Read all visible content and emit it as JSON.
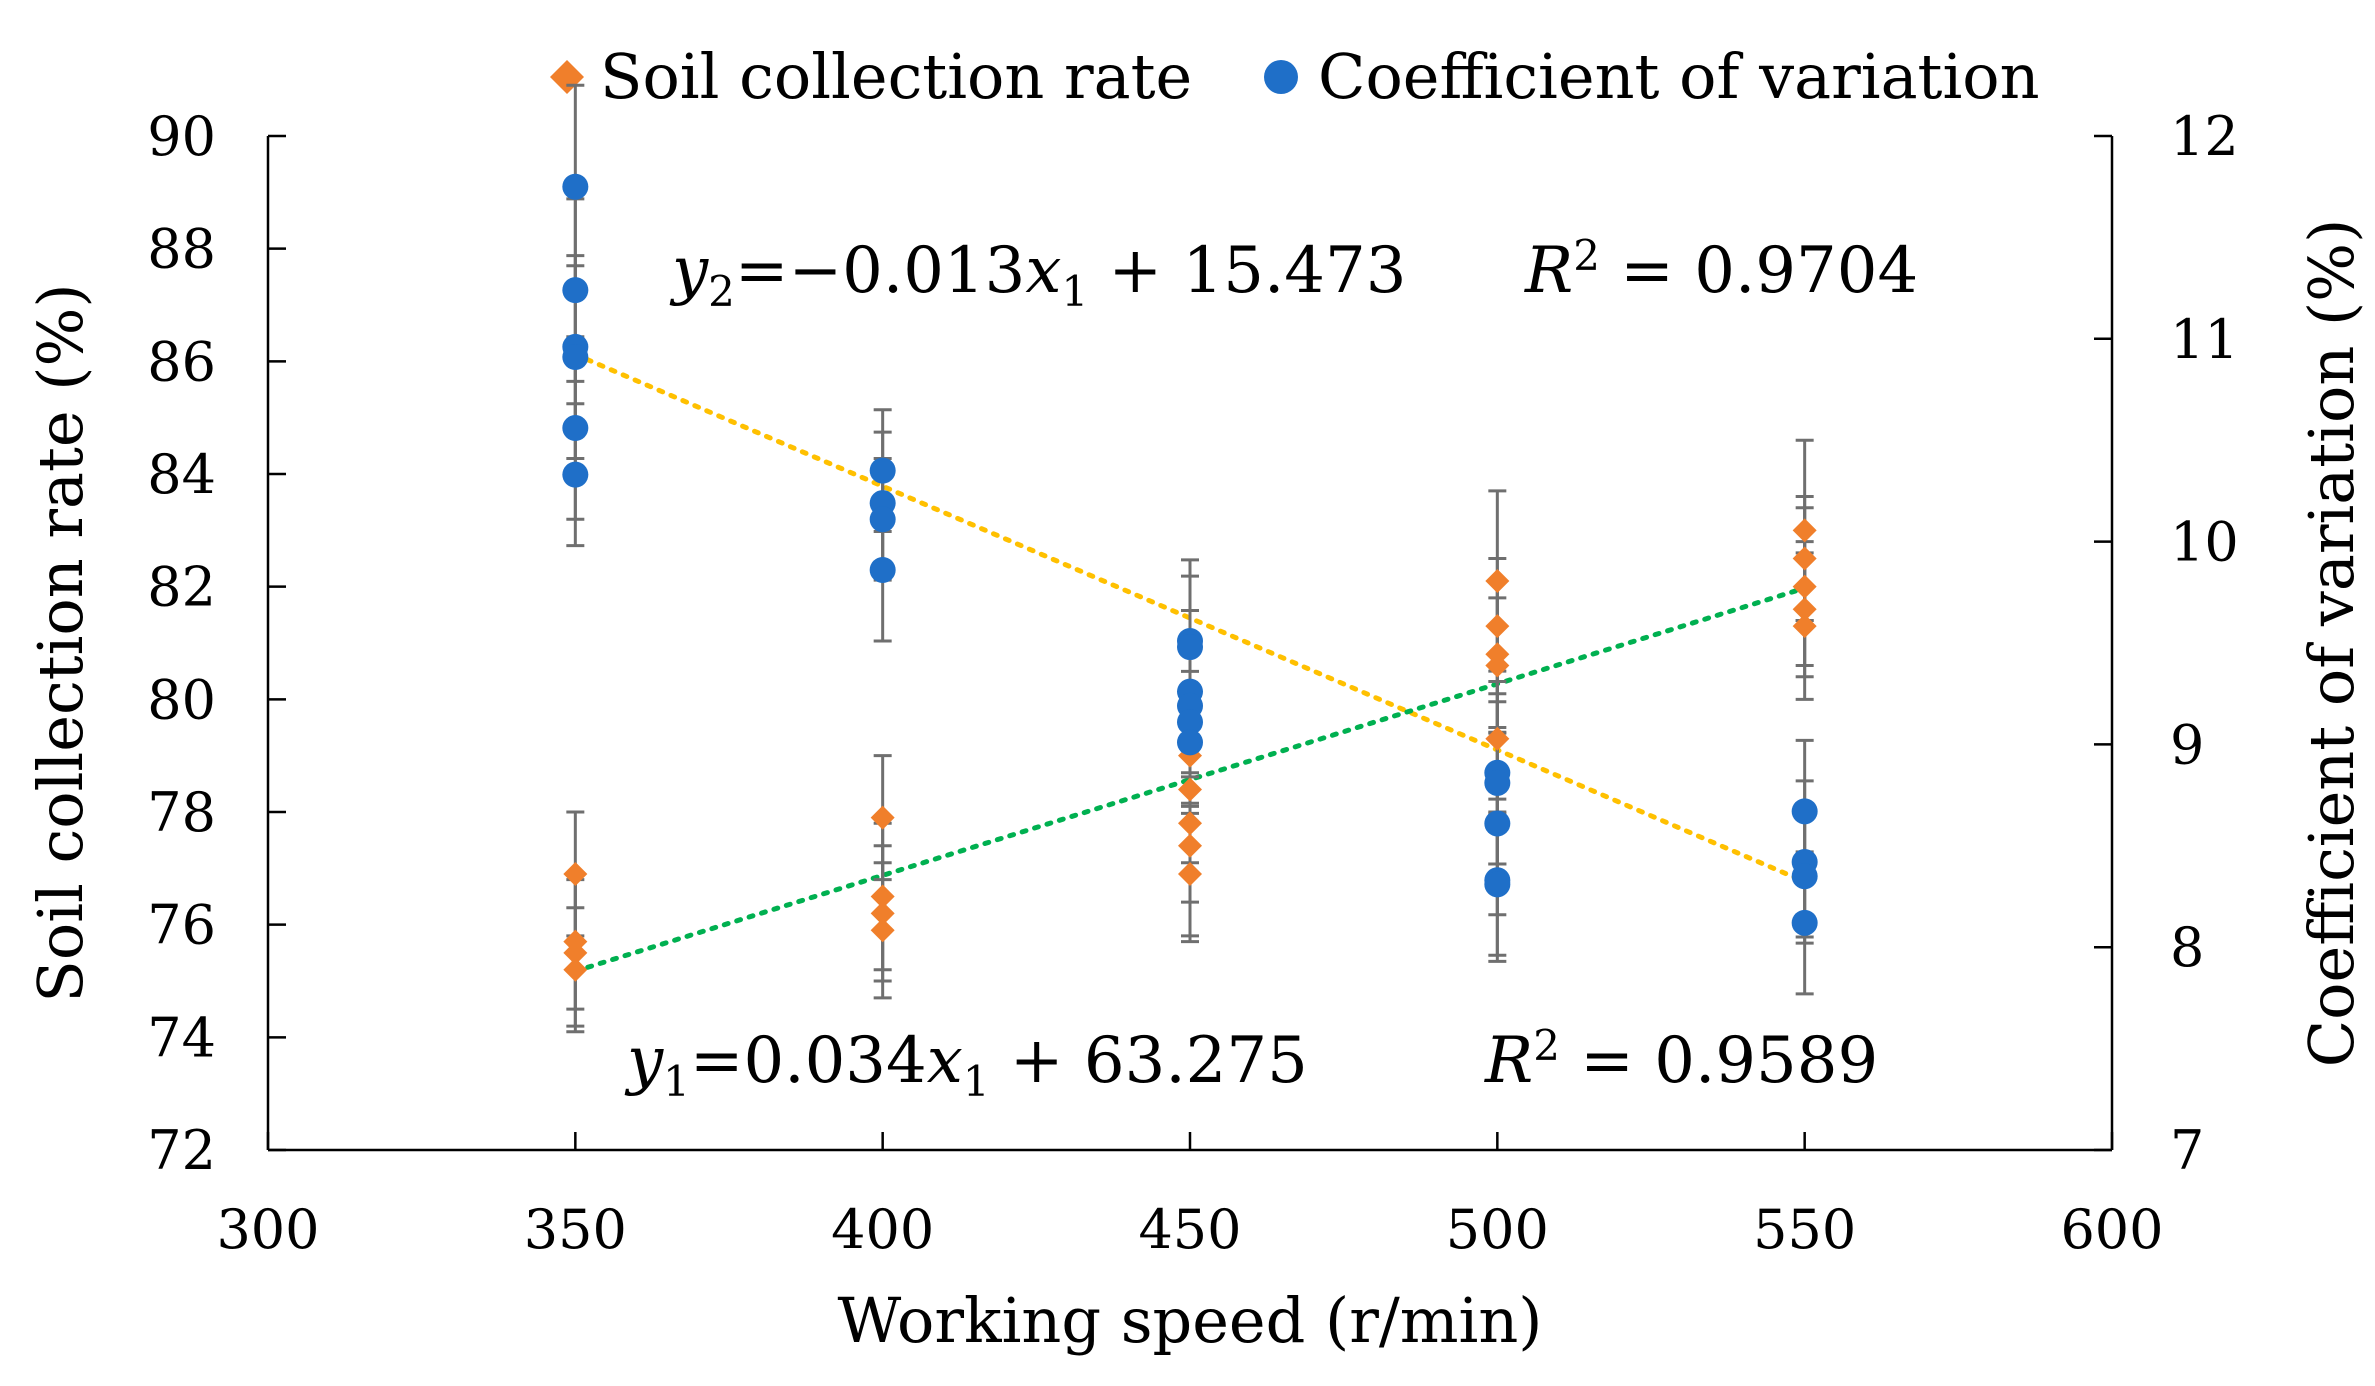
{
  "chart_data": {
    "type": "scatter",
    "title": "",
    "xlabel": "Working speed (r/min)",
    "ylabel_left": "Soil collection rate (%)",
    "ylabel_right": "Coefficient of variation (%)",
    "xlim": [
      300,
      600
    ],
    "xticks": [
      300,
      350,
      400,
      450,
      500,
      550,
      600
    ],
    "ylim_left": [
      72,
      90
    ],
    "yticks_left": [
      72,
      74,
      76,
      78,
      80,
      82,
      84,
      86,
      88,
      90
    ],
    "ylim_right": [
      7,
      12
    ],
    "yticks_right": [
      7,
      8,
      9,
      10,
      11,
      12
    ],
    "legend": {
      "position": "top",
      "entries": [
        {
          "label": "Soil collection rate",
          "marker": "diamond",
          "color": "#f07f2b"
        },
        {
          "label": "Coefficient of variation",
          "marker": "circle",
          "color": "#1f6fc8"
        }
      ]
    },
    "series": [
      {
        "name": "Soil collection rate",
        "axis": "left",
        "marker": "diamond",
        "color": "#f07f2b",
        "points": [
          {
            "x": 350,
            "y": 76.9,
            "err": 1.1
          },
          {
            "x": 350,
            "y": 75.7,
            "err": 1.2
          },
          {
            "x": 350,
            "y": 75.5,
            "err": 1.3
          },
          {
            "x": 350,
            "y": 75.2,
            "err": 1.1
          },
          {
            "x": 400,
            "y": 77.9,
            "err": 1.1
          },
          {
            "x": 400,
            "y": 76.5,
            "err": 1.3
          },
          {
            "x": 400,
            "y": 76.2,
            "err": 1.2
          },
          {
            "x": 400,
            "y": 75.9,
            "err": 1.2
          },
          {
            "x": 450,
            "y": 79.0,
            "err": 1.2
          },
          {
            "x": 450,
            "y": 78.4,
            "err": 1.3
          },
          {
            "x": 450,
            "y": 77.8,
            "err": 1.4
          },
          {
            "x": 450,
            "y": 77.4,
            "err": 1.6
          },
          {
            "x": 450,
            "y": 76.9,
            "err": 1.2
          },
          {
            "x": 500,
            "y": 82.1,
            "err": 1.6
          },
          {
            "x": 500,
            "y": 81.3,
            "err": 1.2
          },
          {
            "x": 500,
            "y": 80.8,
            "err": 1.3
          },
          {
            "x": 500,
            "y": 80.6,
            "err": 1.2
          },
          {
            "x": 500,
            "y": 79.3,
            "err": 1.3
          },
          {
            "x": 550,
            "y": 83.0,
            "err": 1.6
          },
          {
            "x": 550,
            "y": 82.5,
            "err": 1.1
          },
          {
            "x": 550,
            "y": 82.0,
            "err": 1.4
          },
          {
            "x": 550,
            "y": 81.6,
            "err": 1.2
          },
          {
            "x": 550,
            "y": 81.3,
            "err": 1.3
          }
        ],
        "trendline": {
          "slope": 0.034,
          "intercept": 63.275,
          "x_range": [
            350,
            550
          ],
          "color": "#00b050"
        }
      },
      {
        "name": "Coefficient of variation",
        "axis": "right",
        "marker": "circle",
        "color": "#1f6fc8",
        "points": [
          {
            "x": 350,
            "y": 11.75,
            "err": 0.5
          },
          {
            "x": 350,
            "y": 11.24,
            "err": 0.45
          },
          {
            "x": 350,
            "y": 10.96,
            "err": 0.4
          },
          {
            "x": 350,
            "y": 10.91,
            "err": 0.5
          },
          {
            "x": 350,
            "y": 10.56,
            "err": 0.45
          },
          {
            "x": 350,
            "y": 10.33,
            "err": 0.35
          },
          {
            "x": 400,
            "y": 10.35,
            "err": 0.3
          },
          {
            "x": 400,
            "y": 10.19,
            "err": 0.35
          },
          {
            "x": 400,
            "y": 10.11,
            "err": 0.3
          },
          {
            "x": 400,
            "y": 9.86,
            "err": 0.35
          },
          {
            "x": 450,
            "y": 9.51,
            "err": 0.4
          },
          {
            "x": 450,
            "y": 9.48,
            "err": 0.35
          },
          {
            "x": 450,
            "y": 9.26,
            "err": 0.4
          },
          {
            "x": 450,
            "y": 9.19,
            "err": 0.35
          },
          {
            "x": 450,
            "y": 9.11,
            "err": 0.4
          },
          {
            "x": 450,
            "y": 9.01,
            "err": 0.35
          },
          {
            "x": 500,
            "y": 8.86,
            "err": 0.45
          },
          {
            "x": 500,
            "y": 8.81,
            "err": 0.4
          },
          {
            "x": 500,
            "y": 8.61,
            "err": 0.45
          },
          {
            "x": 500,
            "y": 8.33,
            "err": 0.4
          },
          {
            "x": 500,
            "y": 8.31,
            "err": 0.35
          },
          {
            "x": 550,
            "y": 8.67,
            "err": 0.35
          },
          {
            "x": 550,
            "y": 8.42,
            "err": 0.4
          },
          {
            "x": 550,
            "y": 8.35,
            "err": 0.3
          },
          {
            "x": 550,
            "y": 8.12,
            "err": 0.35
          }
        ],
        "trendline": {
          "slope": -0.013,
          "intercept": 15.473,
          "x_range": [
            350,
            550
          ],
          "color": "#ffc000"
        }
      }
    ],
    "annotations": {
      "eq2": {
        "y": "y",
        "sub_y": "2",
        "mid": "=−0.013",
        "x": "x",
        "sub_x": "1",
        "tail": " + 15.473"
      },
      "r2_2": {
        "r": "R",
        "sup": "2",
        "tail": " = 0.9704"
      },
      "eq1": {
        "y": "y",
        "sub_y": "1",
        "mid": "=0.034",
        "x": "x",
        "sub_x": "1",
        "tail": " + 63.275"
      },
      "r2_1": {
        "r": "R",
        "sup": "2",
        "tail": " = 0.9589"
      }
    }
  }
}
